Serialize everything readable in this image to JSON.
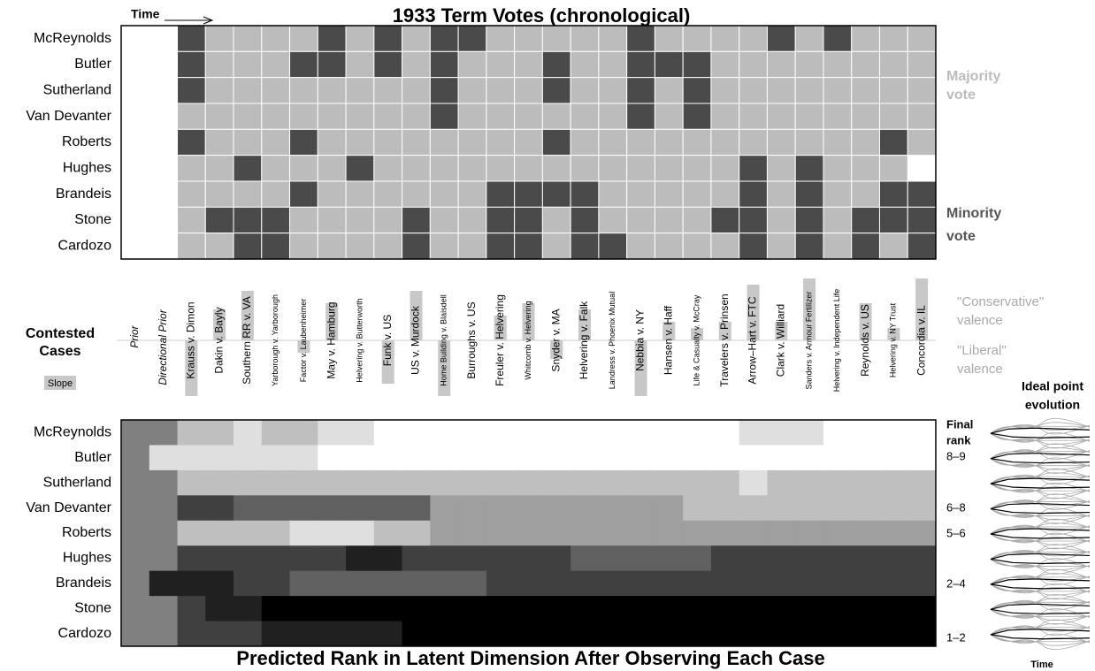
{
  "chart_data": {
    "type": "heatmap",
    "title": "1933 Term Votes (chronological)",
    "time_label": "Time",
    "justices": [
      "McReynolds",
      "Butler",
      "Sutherland",
      "Van Devanter",
      "Roberts",
      "Hughes",
      "Brandeis",
      "Stone",
      "Cardozo"
    ],
    "prior_columns": [
      "Prior",
      "Directional Prior"
    ],
    "cases": [
      "Krauss v. Dimon",
      "Dakin v. Bayly",
      "Southern RR v. VA",
      "Yarborough v. Yarborough",
      "Factor v. Laubenheimer",
      "May v. Hamburg",
      "Helvering v. Butterworth",
      "Funk v. US",
      "US v. Murdock",
      "Home Building v. Blaisdell",
      "Burroughs v. US",
      "Freuler v. Helvering",
      "Whitcomb v. Helvering",
      "Snyder v. MA",
      "Helvering v. Falk",
      "Landress v. Phoenix Mutual",
      "Nebbia v. NY",
      "Hansen v. Haff",
      "Life & Casualty v. McCray",
      "Travelers v. Prinsen",
      "Arrow–Hart v. FTC",
      "Clark v. Williard",
      "Sanders v. Armour Fertilizer",
      "Helvering v. Independent Life",
      "Reynolds v. US",
      "Helvering v. NY Trust",
      "Concordia v. IL"
    ],
    "votes": [
      [
        1,
        0,
        0,
        0,
        0,
        1,
        0,
        1,
        0,
        1,
        1,
        0,
        0,
        0,
        0,
        0,
        1,
        0,
        0,
        0,
        0,
        1,
        0,
        1,
        0,
        0,
        0
      ],
      [
        1,
        0,
        0,
        0,
        1,
        1,
        0,
        1,
        0,
        1,
        0,
        0,
        0,
        1,
        0,
        0,
        1,
        1,
        1,
        0,
        0,
        0,
        0,
        0,
        0,
        0,
        0
      ],
      [
        1,
        0,
        0,
        0,
        0,
        0,
        0,
        0,
        0,
        1,
        0,
        0,
        0,
        1,
        0,
        0,
        1,
        0,
        1,
        0,
        0,
        0,
        0,
        0,
        0,
        0,
        0
      ],
      [
        0,
        0,
        0,
        0,
        0,
        0,
        0,
        0,
        0,
        1,
        0,
        0,
        0,
        0,
        0,
        0,
        1,
        0,
        1,
        0,
        0,
        0,
        0,
        0,
        0,
        0,
        0
      ],
      [
        1,
        0,
        0,
        0,
        1,
        0,
        0,
        0,
        0,
        0,
        0,
        0,
        0,
        1,
        0,
        0,
        0,
        0,
        0,
        0,
        0,
        0,
        0,
        0,
        0,
        1,
        0
      ],
      [
        0,
        0,
        1,
        0,
        0,
        0,
        1,
        0,
        0,
        0,
        0,
        0,
        0,
        0,
        0,
        0,
        0,
        0,
        0,
        0,
        1,
        0,
        1,
        0,
        0,
        0,
        null
      ],
      [
        0,
        0,
        0,
        0,
        1,
        0,
        0,
        0,
        0,
        0,
        0,
        1,
        1,
        1,
        1,
        0,
        0,
        0,
        0,
        0,
        1,
        0,
        1,
        0,
        0,
        1,
        1
      ],
      [
        0,
        1,
        1,
        1,
        0,
        0,
        0,
        0,
        1,
        0,
        0,
        1,
        1,
        0,
        1,
        0,
        0,
        0,
        0,
        1,
        1,
        0,
        1,
        0,
        1,
        1,
        1
      ],
      [
        0,
        0,
        1,
        1,
        0,
        0,
        0,
        0,
        1,
        0,
        0,
        1,
        1,
        0,
        1,
        1,
        0,
        0,
        0,
        0,
        1,
        0,
        1,
        0,
        1,
        0,
        1
      ]
    ],
    "vote_colors": {
      "majority": "#bcbcbc",
      "minority": "#4a4a4a"
    },
    "vote_legend": {
      "majority": [
        "Majority",
        "vote"
      ],
      "minority": [
        "Minority",
        "vote"
      ]
    },
    "contested_label": [
      "Contested",
      "Cases"
    ],
    "slope_label": "Slope",
    "slopes": [
      -0.9,
      0.5,
      0.8,
      0,
      -0.2,
      0.6,
      0,
      -0.7,
      0.8,
      -0.9,
      0,
      0.4,
      0.6,
      -0.3,
      0.5,
      0,
      -0.9,
      0.3,
      0.2,
      0.3,
      0.9,
      0.3,
      1.0,
      0,
      0.6,
      0.2,
      1.0
    ],
    "valence_labels": {
      "conservative": [
        "\"Conservative\"",
        "valence"
      ],
      "liberal": [
        "\"Liberal\"",
        "valence"
      ]
    },
    "ranks_title": "Predicted Rank in Latent Dimension After Observing Each Case",
    "ranks": [
      [
        5,
        5,
        7,
        7,
        8,
        7,
        7,
        8,
        8,
        9,
        9,
        9,
        9,
        9,
        9,
        9,
        9,
        9,
        9,
        9,
        9,
        9,
        8,
        8,
        8,
        9,
        9,
        9,
        9
      ],
      [
        5,
        8,
        8,
        8,
        8,
        8,
        8,
        9,
        9,
        9,
        9,
        9,
        9,
        9,
        9,
        9,
        9,
        9,
        9,
        9,
        9,
        9,
        9,
        9,
        9,
        9,
        9,
        9,
        9
      ],
      [
        5,
        5,
        7,
        7,
        7,
        7,
        7,
        7,
        7,
        7,
        7,
        7,
        7,
        7,
        7,
        7,
        7,
        7,
        7,
        7,
        7,
        7,
        8,
        7,
        7,
        7,
        7,
        7,
        7
      ],
      [
        5,
        5,
        3,
        3,
        4,
        4,
        4,
        4,
        4,
        4,
        4,
        6,
        6,
        6,
        6,
        6,
        6,
        6,
        6,
        6,
        7,
        7,
        7,
        7,
        7,
        7,
        7,
        7,
        7
      ],
      [
        5,
        5,
        7,
        7,
        7,
        7,
        8,
        8,
        8,
        7,
        7,
        6,
        6,
        6,
        6,
        6,
        6,
        6,
        6,
        6,
        6,
        6,
        6,
        6,
        6,
        6,
        6,
        6,
        6
      ],
      [
        5,
        5,
        3,
        3,
        3,
        3,
        3,
        3,
        2,
        2,
        3,
        3,
        3,
        3,
        3,
        3,
        4,
        4,
        4,
        4,
        4,
        3,
        3,
        3,
        3,
        3,
        3,
        3,
        3
      ],
      [
        5,
        2,
        2,
        2,
        3,
        3,
        4,
        4,
        4,
        4,
        4,
        4,
        4,
        3,
        3,
        3,
        3,
        3,
        3,
        3,
        3,
        3,
        3,
        3,
        3,
        3,
        3,
        3,
        3
      ],
      [
        5,
        5,
        3,
        2,
        2,
        1,
        1,
        1,
        1,
        1,
        1,
        1,
        1,
        1,
        1,
        1,
        1,
        1,
        1,
        1,
        1,
        1,
        1,
        1,
        1,
        1,
        1,
        1,
        1
      ],
      [
        5,
        5,
        3,
        3,
        3,
        2,
        2,
        2,
        2,
        2,
        1,
        1,
        1,
        1,
        1,
        1,
        1,
        1,
        1,
        1,
        1,
        1,
        1,
        1,
        1,
        1,
        1,
        1,
        1
      ]
    ],
    "ideal_point_title": [
      "Ideal point",
      "evolution"
    ],
    "final_rank_title": [
      "Final",
      "rank"
    ],
    "final_ranks": [
      "8–9",
      "6–8",
      "5–6",
      "2–4",
      "1–2"
    ],
    "sparkline_time_label": "Time"
  }
}
